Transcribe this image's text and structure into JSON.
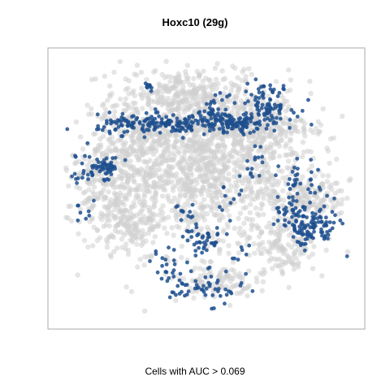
{
  "chart_data": {
    "type": "scatter",
    "title": "Hoxc10 (29g)",
    "caption": "Cells with AUC > 0.069",
    "xlabel": "",
    "ylabel": "",
    "xlim": [
      0,
      100
    ],
    "ylim": [
      0,
      100
    ],
    "axes_visible": false,
    "grid": false,
    "legend": "none",
    "colors": {
      "background_cells": "#cfcfcf",
      "positive_cells": "#1d4f8e",
      "frame": "#aaaaaa"
    },
    "series": [
      {
        "role": "all-cells",
        "clusters": [
          {
            "cx": 48,
            "cy": 58,
            "sx": 18,
            "sy": 16,
            "n": 1400
          },
          {
            "cx": 42,
            "cy": 86,
            "sx": 10,
            "sy": 4,
            "n": 220
          },
          {
            "cx": 65,
            "cy": 74,
            "sx": 10,
            "sy": 6,
            "n": 260
          },
          {
            "cx": 18,
            "cy": 52,
            "sx": 7,
            "sy": 8,
            "n": 220
          },
          {
            "cx": 25,
            "cy": 70,
            "sx": 6,
            "sy": 6,
            "n": 140
          },
          {
            "cx": 83,
            "cy": 47,
            "sx": 7,
            "sy": 4,
            "n": 150
          },
          {
            "cx": 77,
            "cy": 28,
            "sx": 5,
            "sy": 5,
            "n": 120
          },
          {
            "cx": 54,
            "cy": 15,
            "sx": 6,
            "sy": 3,
            "n": 90
          },
          {
            "cx": 24,
            "cy": 36,
            "sx": 5,
            "sy": 5,
            "n": 100
          }
        ]
      },
      {
        "role": "positive-cells",
        "clusters": [
          {
            "cx": 38,
            "cy": 74,
            "sx": 12,
            "sy": 1.8,
            "n": 190
          },
          {
            "cx": 60,
            "cy": 74,
            "sx": 3,
            "sy": 2,
            "n": 60
          },
          {
            "cx": 69,
            "cy": 81,
            "sx": 5,
            "sy": 4,
            "n": 110
          },
          {
            "cx": 53,
            "cy": 79,
            "sx": 2,
            "sy": 3,
            "n": 40
          },
          {
            "cx": 16,
            "cy": 58,
            "sx": 3,
            "sy": 2,
            "n": 55
          },
          {
            "cx": 8,
            "cy": 56,
            "sx": 3,
            "sy": 4,
            "n": 15
          },
          {
            "cx": 84,
            "cy": 35,
            "sx": 5,
            "sy": 3.5,
            "n": 110
          },
          {
            "cx": 79,
            "cy": 43,
            "sx": 3,
            "sy": 2,
            "n": 25
          },
          {
            "cx": 83,
            "cy": 52,
            "sx": 4,
            "sy": 4,
            "n": 35
          },
          {
            "cx": 47,
            "cy": 30,
            "sx": 5,
            "sy": 4,
            "n": 45
          },
          {
            "cx": 50,
            "cy": 12,
            "sx": 6,
            "sy": 3,
            "n": 50
          },
          {
            "cx": 38,
            "cy": 19,
            "sx": 3,
            "sy": 3,
            "n": 20
          },
          {
            "cx": 31,
            "cy": 88,
            "sx": 1,
            "sy": 2,
            "n": 10
          },
          {
            "cx": 22,
            "cy": 76,
            "sx": 2,
            "sy": 2,
            "n": 8
          },
          {
            "cx": 42,
            "cy": 40,
            "sx": 2,
            "sy": 3,
            "n": 12
          },
          {
            "cx": 10,
            "cy": 40,
            "sx": 2,
            "sy": 3,
            "n": 8
          },
          {
            "cx": 65,
            "cy": 60,
            "sx": 2,
            "sy": 3,
            "n": 15
          },
          {
            "cx": 58,
            "cy": 45,
            "sx": 3,
            "sy": 4,
            "n": 10
          },
          {
            "cx": 62,
            "cy": 25,
            "sx": 2,
            "sy": 3,
            "n": 8
          }
        ]
      }
    ]
  }
}
